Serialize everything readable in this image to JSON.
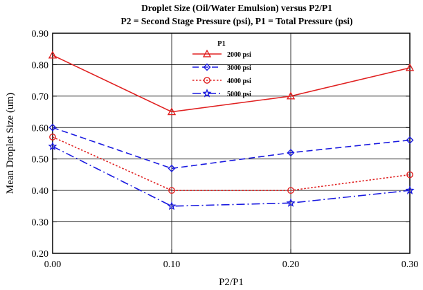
{
  "chart_data": {
    "type": "line",
    "title": "Droplet Size (Oil/Water Emulsion) versus P2/P1",
    "subtitle": "P2 = Second Stage Pressure (psi),  P1 = Total Pressure (psi)",
    "xlabel": "P2/P1",
    "ylabel": "Mean Droplet Size (um)",
    "xlim": [
      0,
      0.3
    ],
    "ylim": [
      0.2,
      0.9
    ],
    "x_ticks": [
      "0.00",
      "0.10",
      "0.20",
      "0.30"
    ],
    "y_ticks": [
      "0.20",
      "0.30",
      "0.40",
      "0.50",
      "0.60",
      "0.70",
      "0.80",
      "0.90"
    ],
    "grid": "vertical and horizontal",
    "legend_position": "top-center",
    "legend_title": "P1",
    "x": [
      0.0,
      0.1,
      0.2,
      0.3
    ],
    "series": [
      {
        "name": "2000 psi",
        "values": [
          0.83,
          0.65,
          0.7,
          0.79
        ],
        "color": "#e02020",
        "line": "solid",
        "marker": "triangle"
      },
      {
        "name": "3000 psi",
        "values": [
          0.6,
          0.47,
          0.52,
          0.56
        ],
        "color": "#1a1ae0",
        "line": "dashed",
        "marker": "diamond"
      },
      {
        "name": "4000 psi",
        "values": [
          0.57,
          0.4,
          0.4,
          0.45
        ],
        "color": "#e02020",
        "line": "dotted",
        "marker": "circle"
      },
      {
        "name": "5000 psi",
        "values": [
          0.54,
          0.35,
          0.36,
          0.4
        ],
        "color": "#1a1ae0",
        "line": "dashdot",
        "marker": "star"
      }
    ]
  }
}
